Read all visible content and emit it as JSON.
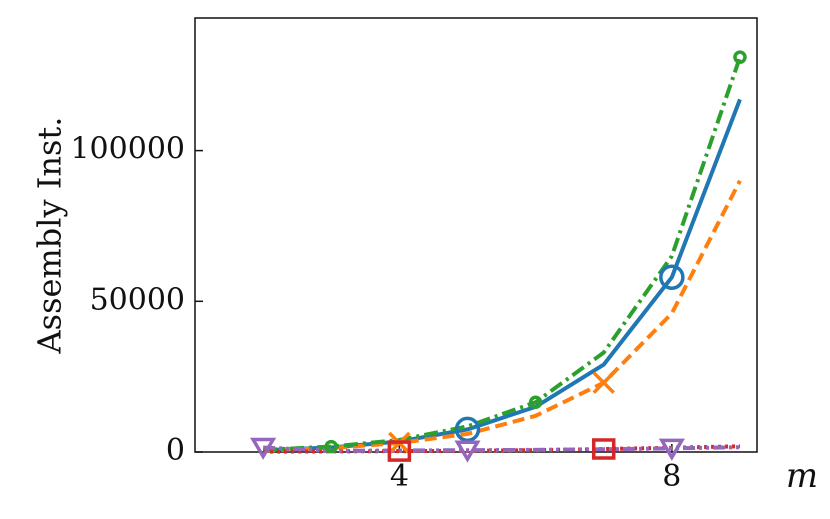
{
  "chart_data": {
    "type": "line",
    "ylabel": "Assembly Inst.",
    "xlabel": "m",
    "x": [
      2,
      3,
      4,
      5,
      6,
      7,
      8,
      9
    ],
    "series": [
      {
        "color": "#1f77b4",
        "linestyle": "solid",
        "marker": "circle-large",
        "marker_at": [
          3,
          6
        ],
        "values": [
          600,
          1500,
          3500,
          7500,
          15000,
          29000,
          58000,
          117000
        ]
      },
      {
        "color": "#ff7f0e",
        "linestyle": "dashed",
        "marker": "x",
        "marker_at": [
          2,
          5
        ],
        "values": [
          500,
          1300,
          3000,
          6000,
          12000,
          23000,
          46000,
          90000
        ]
      },
      {
        "color": "#2ca02c",
        "linestyle": "dashdot",
        "marker": "circle-small",
        "marker_at": [
          1,
          4,
          7
        ],
        "values": [
          700,
          1800,
          4000,
          8500,
          16500,
          33000,
          65000,
          131000
        ]
      },
      {
        "color": "#d62728",
        "linestyle": "dotted",
        "marker": "square",
        "marker_at": [
          2,
          5
        ],
        "values": [
          100,
          200,
          300,
          400,
          600,
          1000,
          1400,
          1900
        ]
      },
      {
        "color": "#9467bd",
        "linestyle": "dashdotdot",
        "marker": "triangle-down",
        "marker_at": [
          0,
          3,
          6
        ],
        "values": [
          1500,
          400,
          500,
          600,
          700,
          900,
          1200,
          1600
        ]
      }
    ],
    "xlim": [
      1,
      9.25
    ],
    "ylim": [
      0,
      144000
    ],
    "xticks": [
      4,
      8
    ],
    "yticks": [
      0,
      50000,
      100000
    ],
    "grid": false
  }
}
